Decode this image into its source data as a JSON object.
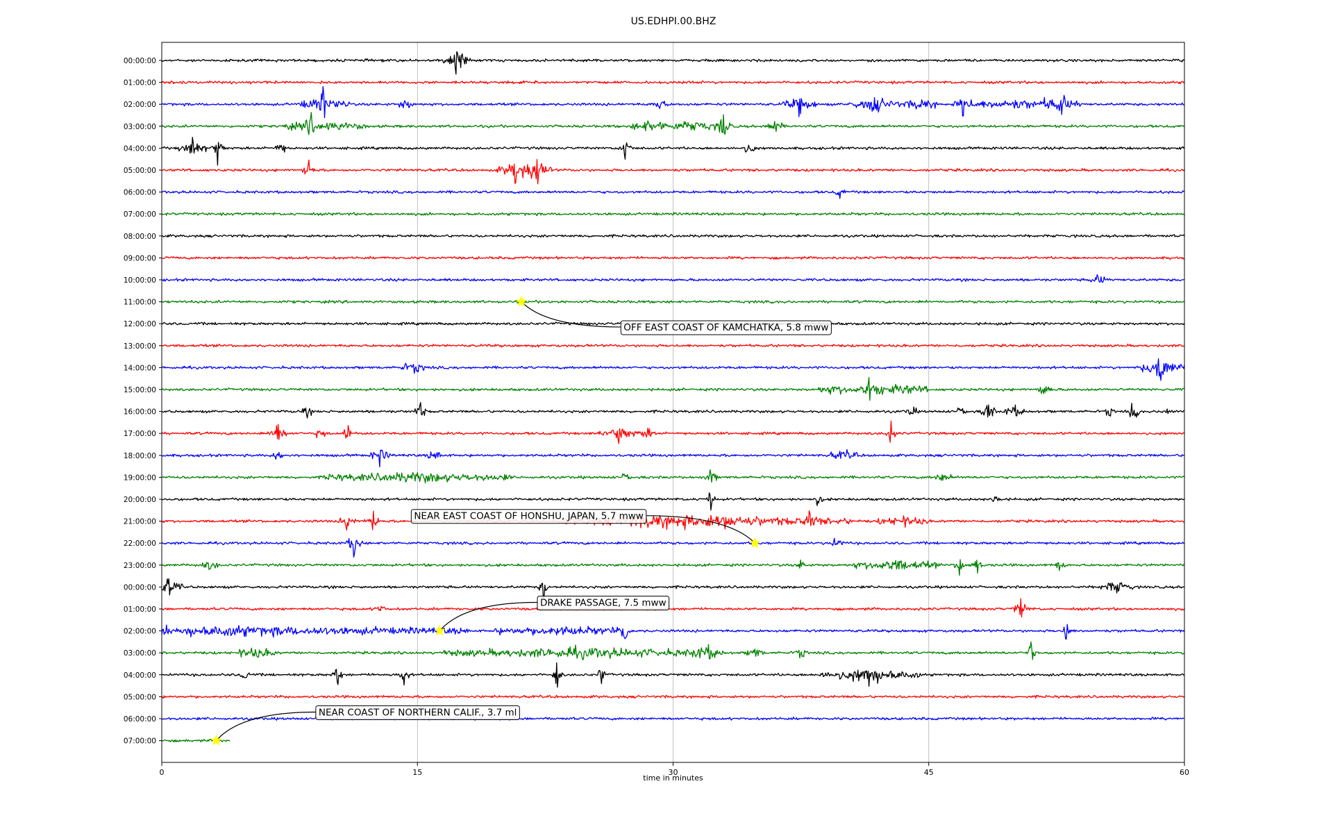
{
  "chart_data": {
    "type": "line",
    "title": "US.EDHPI.00.BHZ",
    "xlabel": "time in minutes",
    "ylabel": "",
    "xlim": [
      0,
      60
    ],
    "x_ticks": [
      0,
      15,
      30,
      45,
      60
    ],
    "grid": "vertical lines at x ticks",
    "trace_colors": [
      "#000000",
      "#ff0000",
      "#0000ff",
      "#008000"
    ],
    "last_row_end_minute": 4,
    "rows": [
      {
        "label": "00:00:00",
        "bursts": [
          [
            17.3,
            0.8,
            1.0
          ]
        ]
      },
      {
        "label": "01:00:00",
        "bursts": []
      },
      {
        "label": "02:00:00",
        "bursts": [
          [
            9.5,
            1.5,
            1.0
          ],
          [
            14.3,
            0.5,
            0.4
          ],
          [
            29.2,
            0.5,
            0.4
          ],
          [
            37.4,
            1.0,
            0.7
          ],
          [
            41.8,
            1.5,
            0.8
          ],
          [
            44.5,
            1.0,
            0.5
          ],
          [
            47.0,
            0.5,
            0.7
          ],
          [
            50.0,
            3.0,
            0.3
          ],
          [
            52.8,
            1.2,
            0.6
          ]
        ]
      },
      {
        "label": "03:00:00",
        "bursts": [
          [
            8.7,
            0.3,
            1.0
          ],
          [
            9.5,
            2.5,
            0.3
          ],
          [
            28.5,
            1.0,
            0.5
          ],
          [
            31.0,
            2.0,
            0.4
          ],
          [
            33.0,
            0.5,
            0.8
          ],
          [
            36.0,
            0.5,
            0.6
          ]
        ]
      },
      {
        "label": "04:00:00",
        "bursts": [
          [
            1.8,
            0.8,
            0.6
          ],
          [
            3.3,
            0.4,
            1.0
          ],
          [
            7.0,
            0.4,
            0.5
          ],
          [
            27.2,
            0.4,
            0.7
          ],
          [
            34.5,
            0.4,
            0.5
          ]
        ]
      },
      {
        "label": "05:00:00",
        "bursts": [
          [
            8.6,
            0.4,
            0.7
          ],
          [
            20.7,
            1.0,
            0.9
          ],
          [
            22.0,
            1.0,
            0.8
          ]
        ]
      },
      {
        "label": "06:00:00",
        "bursts": [
          [
            39.8,
            0.3,
            0.5
          ]
        ]
      },
      {
        "label": "07:00:00",
        "bursts": []
      },
      {
        "label": "08:00:00",
        "bursts": []
      },
      {
        "label": "09:00:00",
        "bursts": []
      },
      {
        "label": "10:00:00",
        "bursts": [
          [
            55.0,
            0.5,
            0.4
          ]
        ]
      },
      {
        "label": "11:00:00",
        "bursts": []
      },
      {
        "label": "12:00:00",
        "bursts": []
      },
      {
        "label": "13:00:00",
        "bursts": []
      },
      {
        "label": "14:00:00",
        "bursts": [
          [
            14.8,
            0.8,
            0.4
          ],
          [
            58.6,
            1.4,
            1.2
          ]
        ]
      },
      {
        "label": "15:00:00",
        "bursts": [
          [
            39.5,
            1.0,
            0.3
          ],
          [
            41.5,
            1.0,
            0.7
          ],
          [
            43.5,
            1.5,
            0.4
          ],
          [
            51.8,
            0.5,
            0.5
          ]
        ]
      },
      {
        "label": "16:00:00",
        "bursts": [
          [
            8.5,
            0.3,
            0.4
          ],
          [
            15.2,
            0.4,
            0.6
          ],
          [
            44.0,
            0.3,
            0.5
          ],
          [
            47.0,
            0.3,
            0.5
          ],
          [
            48.5,
            0.5,
            0.7
          ],
          [
            50.0,
            0.6,
            0.5
          ],
          [
            55.6,
            0.3,
            0.4
          ],
          [
            57.0,
            0.4,
            0.7
          ],
          [
            59.0,
            0.3,
            0.4
          ]
        ]
      },
      {
        "label": "17:00:00",
        "bursts": [
          [
            6.8,
            0.5,
            1.0
          ],
          [
            9.3,
            0.3,
            0.4
          ],
          [
            10.9,
            0.3,
            0.6
          ],
          [
            26.8,
            1.2,
            0.6
          ],
          [
            28.5,
            0.5,
            0.4
          ],
          [
            42.8,
            0.4,
            0.7
          ]
        ]
      },
      {
        "label": "18:00:00",
        "bursts": [
          [
            6.8,
            0.3,
            0.5
          ],
          [
            12.8,
            0.6,
            0.6
          ],
          [
            16.0,
            0.5,
            0.4
          ],
          [
            40.0,
            0.8,
            0.3
          ]
        ]
      },
      {
        "label": "19:00:00",
        "bursts": [
          [
            15.0,
            5.5,
            0.35
          ],
          [
            27.3,
            0.3,
            0.4
          ],
          [
            32.2,
            0.4,
            0.7
          ],
          [
            45.8,
            0.5,
            0.4
          ]
        ]
      },
      {
        "label": "20:00:00",
        "bursts": [
          [
            32.2,
            0.3,
            1.0
          ],
          [
            38.5,
            0.3,
            0.4
          ],
          [
            49.0,
            0.3,
            0.4
          ]
        ]
      },
      {
        "label": "21:00:00",
        "bursts": [
          [
            10.9,
            0.5,
            0.7
          ],
          [
            12.4,
            0.5,
            0.6
          ],
          [
            28.5,
            5.0,
            0.25
          ],
          [
            33.5,
            7.0,
            0.35
          ],
          [
            38.0,
            0.4,
            0.6
          ],
          [
            43.5,
            1.5,
            0.3
          ]
        ]
      },
      {
        "label": "22:00:00",
        "bursts": [
          [
            11.3,
            0.5,
            1.0
          ],
          [
            39.5,
            0.5,
            0.3
          ]
        ]
      },
      {
        "label": "23:00:00",
        "bursts": [
          [
            2.8,
            0.5,
            0.3
          ],
          [
            37.5,
            0.3,
            0.5
          ],
          [
            43.0,
            2.5,
            0.5
          ],
          [
            46.8,
            0.3,
            0.7
          ],
          [
            47.8,
            0.3,
            0.6
          ],
          [
            52.7,
            0.3,
            0.6
          ]
        ]
      },
      {
        "label": "00:00:00",
        "bursts": [
          [
            0.4,
            0.8,
            0.6
          ],
          [
            22.4,
            0.3,
            0.8
          ],
          [
            56.0,
            1.0,
            0.5
          ]
        ]
      },
      {
        "label": "01:00:00",
        "bursts": [
          [
            12.8,
            0.3,
            0.3
          ],
          [
            50.4,
            0.6,
            0.8
          ]
        ]
      },
      {
        "label": "02:00:00",
        "bursts": [
          [
            4.0,
            14.0,
            0.35
          ],
          [
            23.5,
            4.0,
            0.3
          ],
          [
            27.2,
            0.3,
            1.0
          ],
          [
            53.1,
            0.3,
            0.8
          ]
        ]
      },
      {
        "label": "03:00:00",
        "bursts": [
          [
            5.5,
            1.2,
            0.4
          ],
          [
            24.5,
            8.0,
            0.4
          ],
          [
            32.0,
            1.0,
            0.4
          ],
          [
            34.8,
            0.5,
            0.4
          ],
          [
            37.5,
            0.4,
            0.4
          ],
          [
            51.0,
            0.3,
            0.9
          ]
        ]
      },
      {
        "label": "04:00:00",
        "bursts": [
          [
            4.9,
            0.3,
            0.5
          ],
          [
            10.3,
            0.3,
            0.8
          ],
          [
            14.2,
            0.3,
            0.7
          ],
          [
            23.2,
            0.3,
            1.0
          ],
          [
            25.8,
            0.3,
            0.6
          ],
          [
            41.5,
            3.0,
            0.8
          ]
        ]
      },
      {
        "label": "05:00:00",
        "bursts": []
      },
      {
        "label": "06:00:00",
        "bursts": []
      },
      {
        "label": "07:00:00",
        "bursts": []
      }
    ],
    "events": [
      {
        "row": 11,
        "minute": 21.1,
        "label": "OFF EAST COAST OF KAMCHATKA, 5.8 mww",
        "label_minute": 27.1,
        "label_row": 12.15
      },
      {
        "row": 22,
        "minute": 34.8,
        "label": "NEAR EAST COAST OF HONSHU, JAPAN, 5.7 mww",
        "label_minute": 14.8,
        "label_row": 20.75
      },
      {
        "row": 26,
        "minute": 16.3,
        "label": "DRAKE PASSAGE, 7.5 mww",
        "label_minute": 22.2,
        "label_row": 24.7
      },
      {
        "row": 31,
        "minute": 3.2,
        "label": "NEAR COAST OF NORTHERN CALIF., 3.7 ml",
        "label_minute": 9.2,
        "label_row": 29.7
      }
    ]
  }
}
